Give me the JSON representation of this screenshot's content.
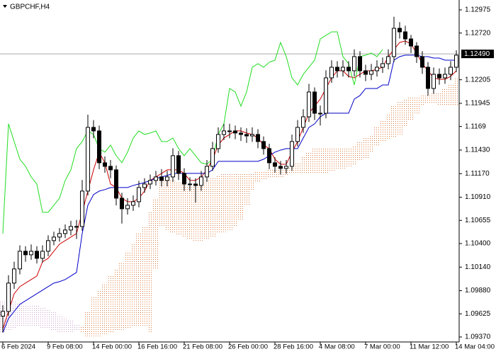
{
  "chart_data": {
    "type": "candlestick",
    "title": "GBPCHF,H4",
    "categories": [
      "6 Feb 2024",
      null,
      null,
      null,
      null,
      null,
      null,
      null,
      "9 Feb 08:00",
      null,
      null,
      null,
      null,
      null,
      null,
      null,
      "14 Feb 00:00",
      null,
      null,
      null,
      null,
      null,
      null,
      null,
      "16 Feb 16:00",
      null,
      null,
      null,
      null,
      null,
      null,
      null,
      "21 Feb 08:00",
      null,
      null,
      null,
      null,
      null,
      null,
      null,
      "26 Feb 00:00",
      null,
      null,
      null,
      null,
      null,
      null,
      null,
      "28 Feb 16:00",
      null,
      null,
      null,
      null,
      null,
      null,
      null,
      "4 Mar 08:00",
      null,
      null,
      null,
      null,
      null,
      null,
      null,
      "7 Mar 00:00",
      null,
      null,
      null,
      null,
      null,
      null,
      null,
      "11 Mar 12:00",
      null,
      null,
      null,
      null,
      null,
      null,
      null,
      "14 Mar 04:00"
    ],
    "open": [
      1.096,
      1.09652,
      1.09964,
      1.1012,
      1.10315,
      1.10276,
      1.10315,
      1.10237,
      1.10315,
      1.10432,
      1.10471,
      1.1051,
      1.10549,
      1.10588,
      1.10588,
      1.10978,
      1.1168,
      1.11641,
      1.1129,
      1.11251,
      1.11212,
      1.109,
      1.10783,
      1.10822,
      1.10861,
      1.11017,
      1.11056,
      1.11095,
      1.11134,
      1.11095,
      1.11134,
      1.11368,
      1.11173,
      1.11056,
      1.11056,
      1.1104,
      1.11134,
      1.11251,
      1.11446,
      1.11602,
      1.11641,
      1.11641,
      1.11618,
      1.11602,
      1.11586,
      1.11602,
      1.11524,
      1.11446,
      1.1129,
      1.11251,
      1.11228,
      1.11251,
      1.11524,
      1.1168,
      1.11797,
      1.1207,
      1.11836,
      1.11836,
      1.12226,
      1.12343,
      1.12304,
      1.12343,
      1.12304,
      1.1246,
      1.12304,
      1.12265,
      1.12304,
      1.12343,
      1.12382,
      1.1246,
      1.12772,
      1.12733,
      1.12655,
      1.12577,
      1.1246,
      1.12343,
      1.12109,
      1.12265,
      1.12226,
      1.12265,
      1.12343
    ],
    "high": [
      1.0972,
      1.1005,
      1.102,
      1.1038,
      1.1037,
      1.1039,
      1.1037,
      1.1038,
      1.1049,
      1.1053,
      1.1057,
      1.1061,
      1.1065,
      1.1066,
      1.111,
      1.1182,
      1.1176,
      1.117,
      1.1136,
      1.1132,
      1.1126,
      1.1096,
      1.109,
      1.1093,
      1.1109,
      1.1112,
      1.1116,
      1.112,
      1.1122,
      1.112,
      1.1145,
      1.1142,
      1.1123,
      1.1113,
      1.1112,
      1.112,
      1.1132,
      1.1152,
      1.1168,
      1.1172,
      1.1172,
      1.117,
      1.1168,
      1.1167,
      1.1168,
      1.1166,
      1.1158,
      1.115,
      1.1135,
      1.1131,
      1.1132,
      1.116,
      1.1176,
      1.1188,
      1.1216,
      1.1212,
      1.1192,
      1.1231,
      1.1242,
      1.1241,
      1.1242,
      1.1241,
      1.1254,
      1.1252,
      1.1237,
      1.1238,
      1.1242,
      1.1245,
      1.1254,
      1.129,
      1.1284,
      1.128,
      1.127,
      1.1262,
      1.1252,
      1.124,
      1.1234,
      1.1233,
      1.1234,
      1.1241,
      1.1253
    ],
    "low": [
      1.0942,
      1.096,
      1.099,
      1.1006,
      1.102,
      1.1022,
      1.1018,
      1.1019,
      1.1026,
      1.1038,
      1.1042,
      1.1046,
      1.1049,
      1.1045,
      1.1054,
      1.1093,
      1.1156,
      1.1122,
      1.1118,
      1.1112,
      1.1082,
      1.1062,
      1.1072,
      1.1076,
      1.108,
      1.1096,
      1.11,
      1.1104,
      1.1103,
      1.1103,
      1.1108,
      1.111,
      1.1098,
      1.1098,
      1.1085,
      1.1098,
      1.1108,
      1.112,
      1.114,
      1.1154,
      1.1156,
      1.1155,
      1.1153,
      1.1151,
      1.1152,
      1.1145,
      1.1138,
      1.1122,
      1.1118,
      1.1116,
      1.1117,
      1.112,
      1.1147,
      1.1162,
      1.1174,
      1.1176,
      1.117,
      1.1178,
      1.1217,
      1.1223,
      1.1224,
      1.1223,
      1.1224,
      1.1223,
      1.1219,
      1.122,
      1.1224,
      1.1228,
      1.1232,
      1.124,
      1.1266,
      1.1259,
      1.125,
      1.1239,
      1.1227,
      1.1203,
      1.1205,
      1.1215,
      1.1216,
      1.122,
      1.1229
    ],
    "close": [
      1.09652,
      1.09964,
      1.1012,
      1.10315,
      1.10276,
      1.10315,
      1.10237,
      1.10315,
      1.10432,
      1.10471,
      1.1051,
      1.10549,
      1.10588,
      1.10588,
      1.10978,
      1.1168,
      1.11641,
      1.1129,
      1.11251,
      1.11212,
      1.109,
      1.10783,
      1.10822,
      1.10861,
      1.11017,
      1.11056,
      1.11095,
      1.11134,
      1.11095,
      1.11134,
      1.11368,
      1.11173,
      1.11056,
      1.11056,
      1.1104,
      1.11134,
      1.11251,
      1.11446,
      1.11602,
      1.11641,
      1.11641,
      1.11618,
      1.11602,
      1.11586,
      1.11602,
      1.11524,
      1.11446,
      1.1129,
      1.11251,
      1.11228,
      1.11251,
      1.11524,
      1.1168,
      1.11797,
      1.1207,
      1.11836,
      1.11836,
      1.12226,
      1.12343,
      1.12304,
      1.12343,
      1.12304,
      1.1246,
      1.12304,
      1.12265,
      1.12304,
      1.12343,
      1.12382,
      1.1246,
      1.12772,
      1.12733,
      1.12655,
      1.12577,
      1.1246,
      1.12343,
      1.12109,
      1.12265,
      1.12226,
      1.12265,
      1.12343,
      1.12476
    ],
    "up_color": "#ffffff",
    "down_color": "#000000",
    "cloud": {
      "up_color": "#dd7a3a",
      "down_color": "#c9a0c9",
      "span_a": [
        1.09418,
        1.09434,
        1.09457,
        1.0948,
        1.0948,
        1.09496,
        1.0948,
        1.09457,
        1.09457,
        1.09434,
        1.09418,
        1.09418,
        1.09418,
        1.09434,
        1.09496,
        1.09652,
        1.09808,
        1.09886,
        1.09964,
        1.10042,
        1.1012,
        1.10198,
        1.10315,
        1.10393,
        1.1051,
        1.10588,
        1.10744,
        1.109,
        1.11095,
        1.11134,
        1.11095,
        1.11072,
        1.11056,
        1.1104,
        1.11056,
        1.11072,
        1.11095,
        1.11134,
        1.1115,
        1.11173,
        1.11173,
        1.11173,
        1.11173,
        1.11173,
        1.11173,
        1.11188,
        1.11196,
        1.11212,
        1.11212,
        1.11212,
        1.11228,
        1.11251,
        1.1129,
        1.11352,
        1.11407,
        1.11446,
        1.11446,
        1.11446,
        1.11446,
        1.11446,
        1.11446,
        1.11462,
        1.11485,
        1.11524,
        1.11563,
        1.11602,
        1.1168,
        1.11758,
        1.11836,
        1.11914,
        1.11976,
        1.11992,
        1.12008,
        1.12023,
        1.12031,
        1.12031,
        1.12054,
        1.1207,
        1.12109,
        1.12164,
        1.12226
      ],
      "span_b": [
        1.09769,
        1.09769,
        1.09769,
        1.09746,
        1.0973,
        1.0973,
        1.09714,
        1.09691,
        1.09668,
        1.09652,
        1.09613,
        1.0959,
        1.09558,
        1.09512,
        1.09418,
        1.09379,
        1.09379,
        1.09379,
        1.09402,
        1.09418,
        1.09434,
        1.09449,
        1.09465,
        1.0948,
        1.09496,
        1.09496,
        1.09418,
        1.1012,
        1.10588,
        1.10549,
        1.1051,
        1.10494,
        1.10471,
        1.10448,
        1.10432,
        1.10432,
        1.10448,
        1.10471,
        1.1051,
        1.10526,
        1.10549,
        1.10588,
        1.10666,
        1.10822,
        1.10978,
        1.11072,
        1.11095,
        1.11118,
        1.11134,
        1.11134,
        1.1115,
        1.11165,
        1.11173,
        1.11173,
        1.11173,
        1.11173,
        1.11173,
        1.11173,
        1.11188,
        1.11212,
        1.11228,
        1.11251,
        1.11274,
        1.11306,
        1.11329,
        1.11407,
        1.11485,
        1.11524,
        1.1154,
        1.11563,
        1.11602,
        1.1168,
        1.11758,
        1.11836,
        1.11914,
        1.11953,
        1.11953,
        1.1193,
        1.11914,
        1.11914,
        1.11914
      ]
    },
    "lines": [
      {
        "color": "#cc0000",
        "values": [
          1.09457,
          1.09652,
          1.09847,
          1.09925,
          1.09964,
          1.10003,
          1.10042,
          1.10198,
          1.10237,
          1.10315,
          1.10393,
          1.10432,
          1.10471,
          1.1051,
          1.10744,
          1.10978,
          1.11212,
          1.11407,
          1.1129,
          1.11056,
          1.11017,
          1.109,
          1.10861,
          1.10861,
          1.109,
          1.10978,
          1.11095,
          1.11134,
          1.11173,
          1.11212,
          1.11212,
          1.11212,
          1.11173,
          1.11095,
          1.11095,
          1.11134,
          1.11212,
          1.11329,
          1.11485,
          1.11563,
          1.11602,
          1.11641,
          1.11641,
          1.11618,
          1.11602,
          1.11563,
          1.11485,
          1.11446,
          1.11329,
          1.11274,
          1.11274,
          1.11407,
          1.11524,
          1.1168,
          1.11836,
          1.11914,
          1.11992,
          1.12109,
          1.12226,
          1.12304,
          1.12304,
          1.12242,
          1.12226,
          1.12265,
          1.12304,
          1.12304,
          1.1232,
          1.12343,
          1.1246,
          1.12538,
          1.12616,
          1.12632,
          1.126,
          1.12499,
          1.12382,
          1.12304,
          1.12226,
          1.1221,
          1.1221,
          1.12242,
          1.12304
        ]
      },
      {
        "color": "#0000c8",
        "values": [
          1.09418,
          1.09574,
          1.09652,
          1.0973,
          1.09769,
          1.09808,
          1.09847,
          1.09886,
          1.09925,
          1.09964,
          1.0998,
          1.10003,
          1.10042,
          1.10081,
          1.1051,
          1.10822,
          1.10939,
          1.10978,
          1.10994,
          1.11017,
          1.11017,
          1.11017,
          1.11017,
          1.1104,
          1.11056,
          1.11072,
          1.11095,
          1.11118,
          1.11134,
          1.1115,
          1.11173,
          1.11173,
          1.11173,
          1.11173,
          1.11173,
          1.11173,
          1.11173,
          1.11212,
          1.11306,
          1.11306,
          1.11306,
          1.11306,
          1.11306,
          1.11306,
          1.11306,
          1.11306,
          1.11329,
          1.11368,
          1.11407,
          1.1143,
          1.11446,
          1.11446,
          1.11446,
          1.11563,
          1.1168,
          1.11719,
          1.11797,
          1.11836,
          1.11836,
          1.11836,
          1.11836,
          1.11836,
          1.11992,
          1.12031,
          1.12109,
          1.12109,
          1.12109,
          1.12148,
          1.12148,
          1.12421,
          1.1246,
          1.12476,
          1.12476,
          1.12476,
          1.1246,
          1.1246,
          1.12444,
          1.12444,
          1.12421,
          1.12421,
          1.12421
        ]
      },
      {
        "color": "#22dd22",
        "values": [
          1.1051,
          1.11719,
          1.11524,
          1.11329,
          1.11251,
          1.11134,
          1.11056,
          1.10744,
          1.10744,
          1.10822,
          1.109,
          1.11095,
          1.11212,
          1.11446,
          1.11524,
          1.11641,
          1.11602,
          1.11446,
          1.11407,
          1.11485,
          1.11368,
          1.1129,
          1.11407,
          1.11563,
          1.11641,
          1.11602,
          1.11618,
          1.11641,
          1.11524,
          1.11524,
          1.11563,
          1.11446,
          1.11368,
          1.11446,
          1.11368,
          1.1129,
          1.11274,
          1.11329,
          1.11602,
          1.11719,
          1.12109,
          1.1207,
          1.11914,
          1.1207,
          1.12343,
          1.12382,
          1.12343,
          1.12398,
          1.12421,
          1.12616,
          1.1246,
          1.12226,
          1.12148,
          1.12265,
          1.12343,
          1.12421,
          1.12655,
          1.12694,
          1.12733,
          1.12733,
          1.1246,
          1.12382,
          1.12148,
          1.1246,
          1.12476,
          1.12499,
          1.1246,
          1.12538,
          null,
          null,
          null,
          null,
          null,
          null,
          null,
          null,
          null,
          null,
          null,
          null,
          null
        ]
      }
    ],
    "current_price": {
      "value": 1.1249,
      "label": "1.12490"
    },
    "ylim": [
      1.09315,
      1.13084
    ],
    "yticks": [
      1.12975,
      {
        "value": 1.1272,
        "label": "1.12720"
      },
      1.12205,
      1.11945,
      1.1169,
      {
        "value": 1.1143,
        "label": "1.11430"
      },
      {
        "value": 1.1117,
        "label": "1.11170"
      },
      {
        "value": 1.1091,
        "label": "1.10910"
      },
      1.10655,
      {
        "value": 1.104,
        "label": "1.10400"
      },
      {
        "value": 1.1014,
        "label": "1.10140"
      },
      {
        "value": 1.0988,
        "label": "1.09880"
      },
      1.09625,
      {
        "value": 1.0937,
        "label": "1.09370"
      }
    ]
  }
}
